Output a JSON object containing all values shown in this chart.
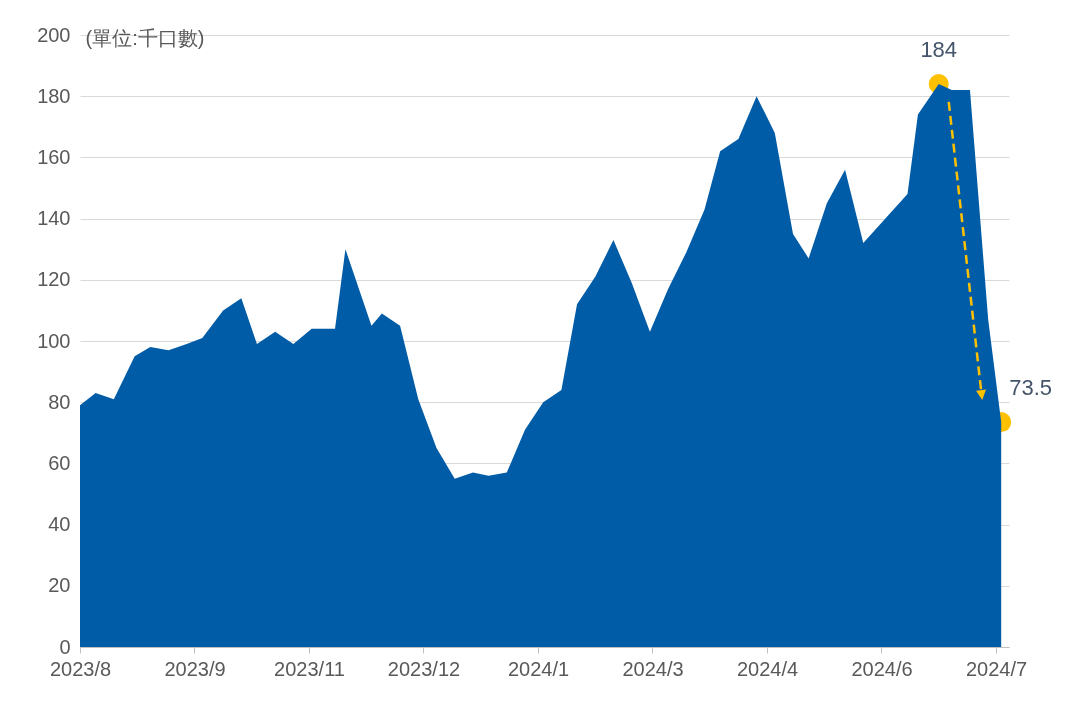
{
  "chart_data": {
    "type": "area",
    "ylabel": "(單位:千口數)",
    "x": [
      "2023-08-06",
      "2023-08-12",
      "2023-08-19",
      "2023-08-27",
      "2023-09-02",
      "2023-09-09",
      "2023-09-16",
      "2023-09-22",
      "2023-09-30",
      "2023-10-07",
      "2023-10-13",
      "2023-10-20",
      "2023-10-27",
      "2023-11-03",
      "2023-11-12",
      "2023-11-16",
      "2023-11-26",
      "2023-11-30",
      "2023-12-07",
      "2023-12-14",
      "2023-12-21",
      "2023-12-28",
      "2024-01-04",
      "2024-01-10",
      "2024-01-17",
      "2024-01-24",
      "2024-01-31",
      "2024-02-07",
      "2024-02-13",
      "2024-02-20",
      "2024-02-27",
      "2024-03-05",
      "2024-03-12",
      "2024-03-19",
      "2024-03-26",
      "2024-04-02",
      "2024-04-08",
      "2024-04-15",
      "2024-04-22",
      "2024-04-29",
      "2024-05-06",
      "2024-05-12",
      "2024-05-19",
      "2024-05-26",
      "2024-06-02",
      "2024-06-19",
      "2024-06-23",
      "2024-07-01",
      "2024-07-06",
      "2024-07-13",
      "2024-07-20",
      "2024-07-25"
    ],
    "series": [
      {
        "color": "#005ca6",
        "values": [
          79,
          83,
          81,
          95,
          98,
          97,
          99,
          101,
          110,
          114,
          99,
          103,
          99,
          104,
          104,
          130,
          105,
          109,
          105,
          81,
          65,
          55,
          57,
          56,
          57,
          71,
          80,
          84,
          112,
          121,
          133,
          119,
          103,
          117,
          129,
          143,
          162,
          166,
          180,
          168,
          135,
          127,
          145,
          156,
          132,
          148,
          174,
          184,
          182,
          182,
          107,
          73.5
        ]
      }
    ],
    "xlim": [
      "2023-08-06",
      "2024-07-28"
    ],
    "xticks": [
      {
        "value": "2023-08-06",
        "label": "2023/8"
      },
      {
        "value": "2023-09-19",
        "label": "2023/9"
      },
      {
        "value": "2023-11-02",
        "label": "2023/11"
      },
      {
        "value": "2023-12-16",
        "label": "2023/12"
      },
      {
        "value": "2024-01-29",
        "label": "2024/1"
      },
      {
        "value": "2024-03-13",
        "label": "2024/3"
      },
      {
        "value": "2024-04-26",
        "label": "2024/4"
      },
      {
        "value": "2024-06-09",
        "label": "2024/6"
      },
      {
        "value": "2024-07-23",
        "label": "2024/7"
      }
    ],
    "ylim": [
      0,
      200
    ],
    "yticks": [
      0,
      20,
      40,
      60,
      80,
      100,
      120,
      140,
      160,
      180,
      200
    ],
    "grid": "y",
    "annotations": [
      {
        "text": "184",
        "x": "2024-07-01",
        "y": 184
      },
      {
        "text": "73.5",
        "x": "2024-07-25",
        "y": 73.5
      }
    ]
  }
}
